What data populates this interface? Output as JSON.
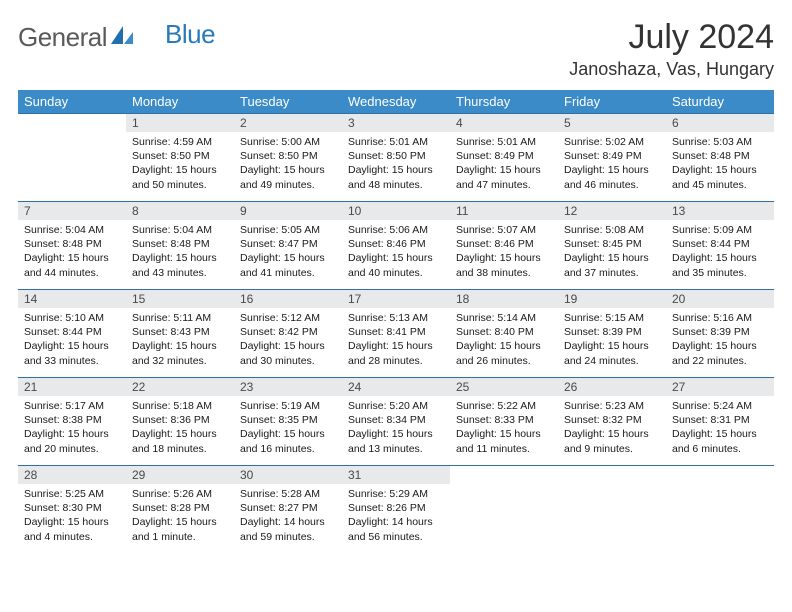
{
  "brand": {
    "general": "General",
    "blue": "Blue"
  },
  "title": "July 2024",
  "location": "Janoshaza, Vas, Hungary",
  "weekdays": [
    "Sunday",
    "Monday",
    "Tuesday",
    "Wednesday",
    "Thursday",
    "Friday",
    "Saturday"
  ],
  "colors": {
    "header_bg": "#3b8bc8",
    "header_text": "#ffffff",
    "daynum_bg": "#e7e9ea",
    "row_border": "#2f6fa3",
    "logo_gray": "#5a5a5a",
    "logo_blue": "#2a7ab8"
  },
  "typography": {
    "month_title_fontsize": 34,
    "location_fontsize": 18,
    "weekday_fontsize": 13,
    "daynum_fontsize": 12,
    "detail_fontsize": 10.5
  },
  "weeks": [
    [
      {
        "n": "",
        "sunrise": "",
        "sunset": "",
        "daylight": ""
      },
      {
        "n": "1",
        "sunrise": "Sunrise: 4:59 AM",
        "sunset": "Sunset: 8:50 PM",
        "daylight": "Daylight: 15 hours and 50 minutes."
      },
      {
        "n": "2",
        "sunrise": "Sunrise: 5:00 AM",
        "sunset": "Sunset: 8:50 PM",
        "daylight": "Daylight: 15 hours and 49 minutes."
      },
      {
        "n": "3",
        "sunrise": "Sunrise: 5:01 AM",
        "sunset": "Sunset: 8:50 PM",
        "daylight": "Daylight: 15 hours and 48 minutes."
      },
      {
        "n": "4",
        "sunrise": "Sunrise: 5:01 AM",
        "sunset": "Sunset: 8:49 PM",
        "daylight": "Daylight: 15 hours and 47 minutes."
      },
      {
        "n": "5",
        "sunrise": "Sunrise: 5:02 AM",
        "sunset": "Sunset: 8:49 PM",
        "daylight": "Daylight: 15 hours and 46 minutes."
      },
      {
        "n": "6",
        "sunrise": "Sunrise: 5:03 AM",
        "sunset": "Sunset: 8:48 PM",
        "daylight": "Daylight: 15 hours and 45 minutes."
      }
    ],
    [
      {
        "n": "7",
        "sunrise": "Sunrise: 5:04 AM",
        "sunset": "Sunset: 8:48 PM",
        "daylight": "Daylight: 15 hours and 44 minutes."
      },
      {
        "n": "8",
        "sunrise": "Sunrise: 5:04 AM",
        "sunset": "Sunset: 8:48 PM",
        "daylight": "Daylight: 15 hours and 43 minutes."
      },
      {
        "n": "9",
        "sunrise": "Sunrise: 5:05 AM",
        "sunset": "Sunset: 8:47 PM",
        "daylight": "Daylight: 15 hours and 41 minutes."
      },
      {
        "n": "10",
        "sunrise": "Sunrise: 5:06 AM",
        "sunset": "Sunset: 8:46 PM",
        "daylight": "Daylight: 15 hours and 40 minutes."
      },
      {
        "n": "11",
        "sunrise": "Sunrise: 5:07 AM",
        "sunset": "Sunset: 8:46 PM",
        "daylight": "Daylight: 15 hours and 38 minutes."
      },
      {
        "n": "12",
        "sunrise": "Sunrise: 5:08 AM",
        "sunset": "Sunset: 8:45 PM",
        "daylight": "Daylight: 15 hours and 37 minutes."
      },
      {
        "n": "13",
        "sunrise": "Sunrise: 5:09 AM",
        "sunset": "Sunset: 8:44 PM",
        "daylight": "Daylight: 15 hours and 35 minutes."
      }
    ],
    [
      {
        "n": "14",
        "sunrise": "Sunrise: 5:10 AM",
        "sunset": "Sunset: 8:44 PM",
        "daylight": "Daylight: 15 hours and 33 minutes."
      },
      {
        "n": "15",
        "sunrise": "Sunrise: 5:11 AM",
        "sunset": "Sunset: 8:43 PM",
        "daylight": "Daylight: 15 hours and 32 minutes."
      },
      {
        "n": "16",
        "sunrise": "Sunrise: 5:12 AM",
        "sunset": "Sunset: 8:42 PM",
        "daylight": "Daylight: 15 hours and 30 minutes."
      },
      {
        "n": "17",
        "sunrise": "Sunrise: 5:13 AM",
        "sunset": "Sunset: 8:41 PM",
        "daylight": "Daylight: 15 hours and 28 minutes."
      },
      {
        "n": "18",
        "sunrise": "Sunrise: 5:14 AM",
        "sunset": "Sunset: 8:40 PM",
        "daylight": "Daylight: 15 hours and 26 minutes."
      },
      {
        "n": "19",
        "sunrise": "Sunrise: 5:15 AM",
        "sunset": "Sunset: 8:39 PM",
        "daylight": "Daylight: 15 hours and 24 minutes."
      },
      {
        "n": "20",
        "sunrise": "Sunrise: 5:16 AM",
        "sunset": "Sunset: 8:39 PM",
        "daylight": "Daylight: 15 hours and 22 minutes."
      }
    ],
    [
      {
        "n": "21",
        "sunrise": "Sunrise: 5:17 AM",
        "sunset": "Sunset: 8:38 PM",
        "daylight": "Daylight: 15 hours and 20 minutes."
      },
      {
        "n": "22",
        "sunrise": "Sunrise: 5:18 AM",
        "sunset": "Sunset: 8:36 PM",
        "daylight": "Daylight: 15 hours and 18 minutes."
      },
      {
        "n": "23",
        "sunrise": "Sunrise: 5:19 AM",
        "sunset": "Sunset: 8:35 PM",
        "daylight": "Daylight: 15 hours and 16 minutes."
      },
      {
        "n": "24",
        "sunrise": "Sunrise: 5:20 AM",
        "sunset": "Sunset: 8:34 PM",
        "daylight": "Daylight: 15 hours and 13 minutes."
      },
      {
        "n": "25",
        "sunrise": "Sunrise: 5:22 AM",
        "sunset": "Sunset: 8:33 PM",
        "daylight": "Daylight: 15 hours and 11 minutes."
      },
      {
        "n": "26",
        "sunrise": "Sunrise: 5:23 AM",
        "sunset": "Sunset: 8:32 PM",
        "daylight": "Daylight: 15 hours and 9 minutes."
      },
      {
        "n": "27",
        "sunrise": "Sunrise: 5:24 AM",
        "sunset": "Sunset: 8:31 PM",
        "daylight": "Daylight: 15 hours and 6 minutes."
      }
    ],
    [
      {
        "n": "28",
        "sunrise": "Sunrise: 5:25 AM",
        "sunset": "Sunset: 8:30 PM",
        "daylight": "Daylight: 15 hours and 4 minutes."
      },
      {
        "n": "29",
        "sunrise": "Sunrise: 5:26 AM",
        "sunset": "Sunset: 8:28 PM",
        "daylight": "Daylight: 15 hours and 1 minute."
      },
      {
        "n": "30",
        "sunrise": "Sunrise: 5:28 AM",
        "sunset": "Sunset: 8:27 PM",
        "daylight": "Daylight: 14 hours and 59 minutes."
      },
      {
        "n": "31",
        "sunrise": "Sunrise: 5:29 AM",
        "sunset": "Sunset: 8:26 PM",
        "daylight": "Daylight: 14 hours and 56 minutes."
      },
      {
        "n": "",
        "sunrise": "",
        "sunset": "",
        "daylight": ""
      },
      {
        "n": "",
        "sunrise": "",
        "sunset": "",
        "daylight": ""
      },
      {
        "n": "",
        "sunrise": "",
        "sunset": "",
        "daylight": ""
      }
    ]
  ]
}
